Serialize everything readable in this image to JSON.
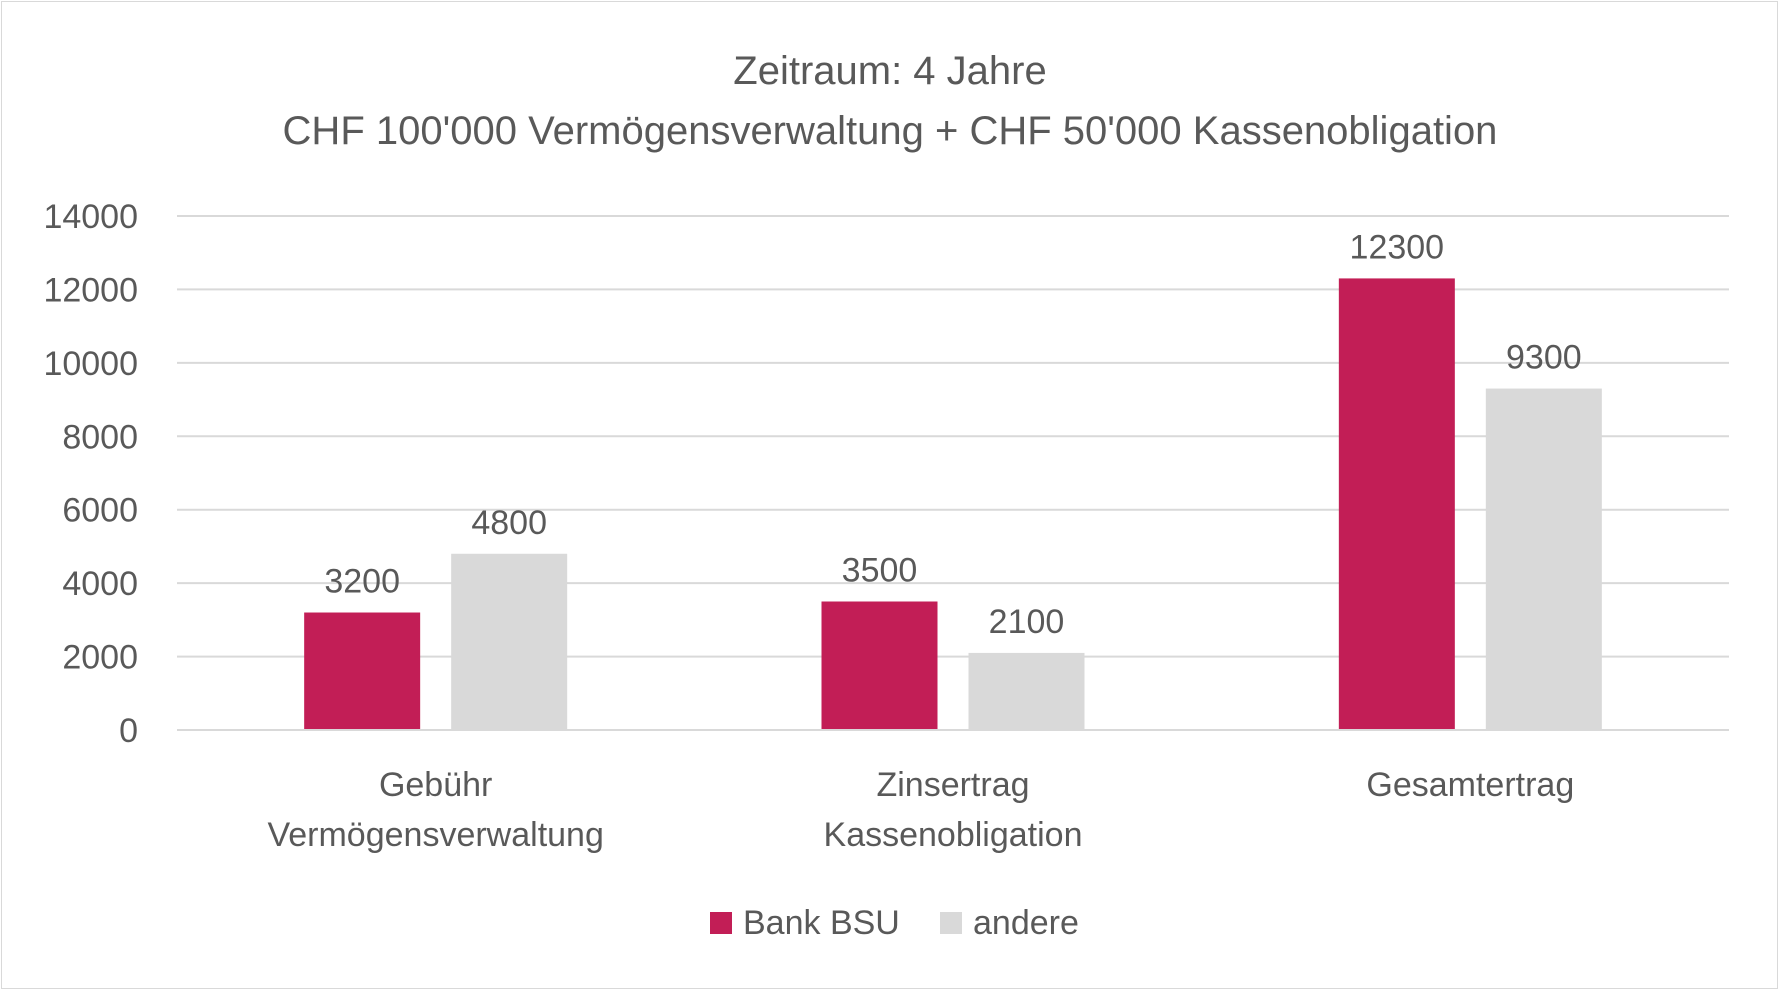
{
  "chart_data": {
    "type": "bar",
    "title": "Zeitraum: 4 Jahre",
    "subtitle": "CHF 100'000 Vermögensverwaltung + CHF 50'000 Kassenobligation",
    "categories": [
      [
        "Gebühr",
        "Vermögensverwaltung"
      ],
      [
        "Zinsertrag",
        "Kassenobligation"
      ],
      [
        "Gesamtertrag"
      ]
    ],
    "series": [
      {
        "name": "Bank BSU",
        "color": "#c21e56",
        "values": [
          3200,
          3500,
          12300
        ]
      },
      {
        "name": "andere",
        "color": "#d9d9d9",
        "values": [
          4800,
          2100,
          9300
        ]
      }
    ],
    "ylim": [
      0,
      14000
    ],
    "yticks": [
      0,
      2000,
      4000,
      6000,
      8000,
      10000,
      12000,
      14000
    ],
    "xlabel": "",
    "ylabel": "",
    "grid": true,
    "legend": "bottom-center",
    "data_labels": true
  }
}
